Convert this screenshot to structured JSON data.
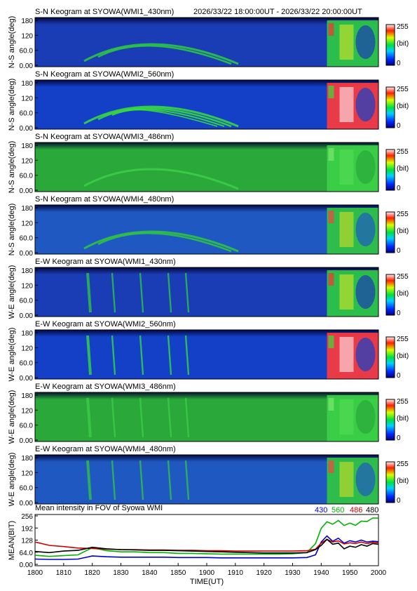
{
  "header": {
    "time_range": "2026/33/22 18:00:00UT - 2026/33/22 20:00:00UT"
  },
  "colors": {
    "kgram_low": "#0a1e9c",
    "kgram_mid": "#22c822",
    "kgram_high": "#ff2020",
    "series_430": "#0000cc",
    "series_560": "#00b400",
    "series_486": "#cc0000",
    "series_480": "#000000"
  },
  "colorbar": {
    "max_label": "255",
    "unit_label": "(bit)",
    "min_label": "0"
  },
  "keograms": [
    {
      "title": "S-N Keogram at SYOWA(WMI1_430nm)",
      "ylabel": "N-S angle(deg)",
      "ticks": [
        "180",
        "120",
        "60.0",
        "0.00"
      ],
      "channel": "430",
      "dir": "NS"
    },
    {
      "title": "S-N Keogram at SYOWA(WMI2_560nm)",
      "ylabel": "N-S angle(deg)",
      "ticks": [
        "180",
        "120",
        "60.0",
        "0.00"
      ],
      "channel": "560",
      "dir": "NS"
    },
    {
      "title": "S-N Keogram at SYOWA(WMI3_486nm)",
      "ylabel": "N-S angle(deg)",
      "ticks": [
        "180",
        "120",
        "60.0",
        "0.00"
      ],
      "channel": "486",
      "dir": "NS"
    },
    {
      "title": "S-N Keogram at SYOWA(WMI4_480nm)",
      "ylabel": "N-S angle(deg)",
      "ticks": [
        "180",
        "120",
        "60.0",
        "0.00"
      ],
      "channel": "480",
      "dir": "NS"
    },
    {
      "title": "E-W Keogram at SYOWA(WMI1_430nm)",
      "ylabel": "W-E angle(deg)",
      "ticks": [
        "180",
        "120",
        "60.0",
        "0.00"
      ],
      "channel": "430",
      "dir": "EW"
    },
    {
      "title": "E-W Keogram at SYOWA(WMI2_560nm)",
      "ylabel": "W-E angle(deg)",
      "ticks": [
        "180",
        "120",
        "60.0",
        "0.00"
      ],
      "channel": "560",
      "dir": "EW"
    },
    {
      "title": "E-W Keogram at SYOWA(WMI3_486nm)",
      "ylabel": "W-E angle(deg)",
      "ticks": [
        "180",
        "120",
        "60.0",
        "0.00"
      ],
      "channel": "486",
      "dir": "EW"
    },
    {
      "title": "E-W Keogram at SYOWA(WMI4_480nm)",
      "ylabel": "W-E angle(deg)",
      "ticks": [
        "180",
        "120",
        "60.0",
        "0.00"
      ],
      "channel": "480",
      "dir": "EW"
    }
  ],
  "chart_data": {
    "type": "line",
    "title": "Mean intensity in FOV of Syowa WMI",
    "xlabel": "TIME(UT)",
    "ylabel": "MEAN(BIT)",
    "x_ticks": [
      "1800",
      "1810",
      "1820",
      "1830",
      "1840",
      "1850",
      "1900",
      "1910",
      "1920",
      "1930",
      "1940",
      "1950",
      "2000"
    ],
    "y_ticks": [
      "256",
      "192",
      "128",
      "64.0",
      "0.00"
    ],
    "ylim": [
      0,
      256
    ],
    "x_minutes": [
      0,
      5,
      10,
      15,
      20,
      25,
      30,
      35,
      40,
      45,
      50,
      55,
      60,
      65,
      70,
      75,
      80,
      85,
      90,
      95,
      98,
      100,
      102,
      104,
      106,
      108,
      110,
      112,
      114,
      116,
      118,
      120
    ],
    "series": [
      {
        "name": "430",
        "values": [
          28,
          26,
          26,
          28,
          44,
          40,
          38,
          38,
          38,
          38,
          36,
          36,
          36,
          34,
          34,
          34,
          34,
          34,
          34,
          36,
          50,
          118,
          150,
          122,
          138,
          112,
          125,
          118,
          128,
          118,
          122,
          120
        ]
      },
      {
        "name": "560",
        "values": [
          48,
          42,
          46,
          50,
          88,
          72,
          66,
          66,
          62,
          62,
          58,
          58,
          56,
          54,
          54,
          54,
          54,
          54,
          56,
          62,
          110,
          190,
          225,
          212,
          232,
          205,
          218,
          206,
          228,
          226,
          245,
          244
        ]
      },
      {
        "name": "486",
        "values": [
          118,
          100,
          94,
          86,
          84,
          80,
          78,
          78,
          76,
          76,
          74,
          74,
          72,
          72,
          70,
          70,
          70,
          70,
          70,
          72,
          80,
          112,
          132,
          118,
          124,
          108,
          114,
          110,
          118,
          110,
          116,
          114
        ]
      },
      {
        "name": "480",
        "values": [
          68,
          62,
          70,
          74,
          90,
          82,
          78,
          76,
          74,
          74,
          72,
          70,
          68,
          66,
          64,
          62,
          60,
          60,
          60,
          62,
          78,
          100,
          132,
          106,
          112,
          82,
          96,
          90,
          104,
          96,
          110,
          106
        ]
      }
    ]
  }
}
